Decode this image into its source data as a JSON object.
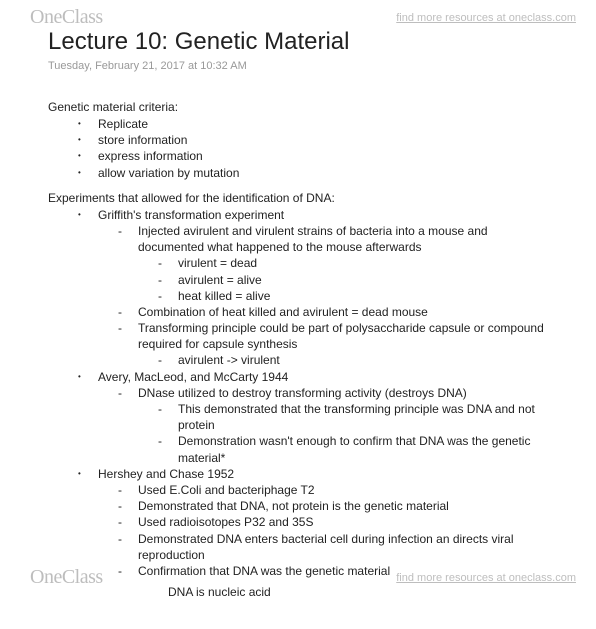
{
  "watermark": {
    "logo_one": "One",
    "logo_class": "Class",
    "link_text": "find more resources at oneclass.com"
  },
  "title": "Lecture 10: Genetic Material",
  "date": "Tuesday, February 21, 2017 at 10:32 AM",
  "section1": {
    "head": "Genetic material criteria:",
    "items": [
      "Replicate",
      "store information",
      "express information",
      "allow variation by mutation"
    ]
  },
  "section2": {
    "head": "Experiments that allowed for the identification of DNA:",
    "exp1": {
      "name": "Griffith's transformation experiment",
      "d1a": "Injected avirulent and virulent strains of bacteria into a mouse and documented what happened to the mouse afterwards",
      "d2a": "virulent = dead",
      "d2b": "avirulent = alive",
      "d2c": "heat killed = alive",
      "d1b": "Combination of heat killed and avirulent = dead mouse",
      "d1c": "Transforming principle could be part of polysaccharide capsule or compound required for capsule synthesis",
      "d2d": "avirulent -> virulent"
    },
    "exp2": {
      "name": "Avery, MacLeod, and McCarty 1944",
      "d1a": "DNase utilized to destroy transforming activity (destroys DNA)",
      "d2a": "This demonstrated that the transforming principle was DNA and not protein",
      "d2b": "Demonstration wasn't enough to confirm that DNA was the genetic material*"
    },
    "exp3": {
      "name": "Hershey and Chase 1952",
      "d1a": "Used E.Coli and bacteriphage T2",
      "d1b": "Demonstrated that DNA, not protein is the genetic material",
      "d1c": "Used radioisotopes P32 and 35S",
      "d1d": "Demonstrated DNA enters bacterial cell during infection an directs viral reproduction",
      "d1e": "Confirmation that DNA was the genetic material"
    }
  },
  "footer": "DNA is nucleic acid"
}
